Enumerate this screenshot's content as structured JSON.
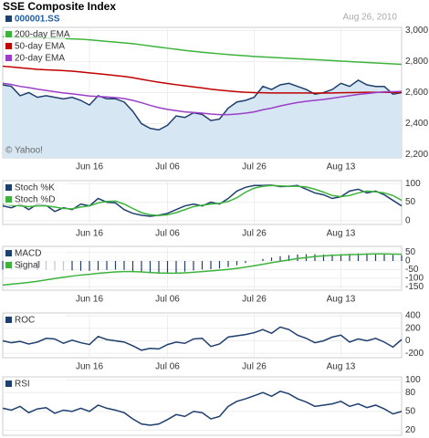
{
  "title": "SSE Composite Index",
  "date": "Aug 26, 2010",
  "attribution": "© Yahoo!",
  "chart_data": [
    {
      "type": "line",
      "categories": [
        null,
        null,
        null,
        null,
        null,
        null,
        null,
        null,
        null,
        null,
        "Jun 16",
        null,
        null,
        null,
        null,
        null,
        null,
        null,
        null,
        "Jul 06",
        null,
        null,
        null,
        null,
        null,
        null,
        null,
        null,
        null,
        "Jul 26",
        null,
        null,
        null,
        null,
        null,
        null,
        null,
        null,
        null,
        "Aug 13",
        null,
        null,
        null,
        null,
        null,
        null,
        null
      ],
      "ylim": [
        2180,
        3020
      ],
      "yticks": [
        {
          "value": 3000,
          "label": "3,000"
        },
        {
          "value": 2800,
          "label": "2,800"
        },
        {
          "value": 2600,
          "label": "2,600"
        },
        {
          "value": 2400,
          "label": "2,400"
        },
        {
          "value": 2200,
          "label": "2,200"
        }
      ],
      "grid": true,
      "series": [
        {
          "name": "000001.SS",
          "color": "#1f3f6e",
          "area": true,
          "values": [
            2650,
            2640,
            2580,
            2600,
            2570,
            2580,
            2570,
            2560,
            2570,
            2550,
            2520,
            2580,
            2560,
            2560,
            2540,
            2480,
            2400,
            2370,
            2360,
            2390,
            2450,
            2440,
            2470,
            2460,
            2420,
            2430,
            2500,
            2540,
            2550,
            2570,
            2640,
            2620,
            2650,
            2660,
            2640,
            2620,
            2590,
            2600,
            2620,
            2660,
            2640,
            2680,
            2650,
            2640,
            2640,
            2590,
            2600
          ]
        },
        {
          "name": "200-day EMA",
          "color": "#3cb43c",
          "values": [
            2960,
            2958,
            2957,
            2955,
            2953,
            2952,
            2950,
            2948,
            2946,
            2944,
            2940,
            2935,
            2930,
            2925,
            2920,
            2915,
            2908,
            2900,
            2893,
            2886,
            2879,
            2872,
            2866,
            2860,
            2855,
            2850,
            2845,
            2841,
            2837,
            2833,
            2830,
            2827,
            2824,
            2821,
            2818,
            2815,
            2812,
            2809,
            2806,
            2803,
            2800,
            2797,
            2794,
            2791,
            2788,
            2785,
            2782
          ]
        },
        {
          "name": "50-day EMA",
          "color": "#c00000",
          "values": [
            2770,
            2765,
            2760,
            2755,
            2750,
            2747,
            2745,
            2742,
            2738,
            2733,
            2727,
            2722,
            2716,
            2710,
            2704,
            2696,
            2686,
            2676,
            2667,
            2659,
            2651,
            2644,
            2637,
            2630,
            2622,
            2616,
            2611,
            2606,
            2602,
            2600,
            2599,
            2598,
            2598,
            2598,
            2598,
            2598,
            2597,
            2597,
            2598,
            2599,
            2600,
            2601,
            2602,
            2602,
            2602,
            2601,
            2600
          ]
        },
        {
          "name": "20-day EMA",
          "color": "#9b3fc8",
          "values": [
            2660,
            2652,
            2640,
            2632,
            2622,
            2614,
            2606,
            2598,
            2592,
            2585,
            2578,
            2575,
            2572,
            2568,
            2562,
            2550,
            2535,
            2518,
            2503,
            2492,
            2484,
            2476,
            2472,
            2468,
            2462,
            2458,
            2458,
            2462,
            2468,
            2476,
            2490,
            2500,
            2514,
            2526,
            2536,
            2544,
            2550,
            2556,
            2564,
            2572,
            2580,
            2588,
            2594,
            2600,
            2605,
            2606,
            2608
          ]
        }
      ]
    },
    {
      "type": "line",
      "categories": [
        null,
        null,
        null,
        null,
        null,
        null,
        null,
        null,
        null,
        null,
        "Jun 16",
        null,
        null,
        null,
        null,
        null,
        null,
        null,
        null,
        "Jul 06",
        null,
        null,
        null,
        null,
        null,
        null,
        null,
        null,
        null,
        "Jul 26",
        null,
        null,
        null,
        null,
        null,
        null,
        null,
        null,
        null,
        "Aug 13",
        null,
        null,
        null,
        null,
        null,
        null,
        null
      ],
      "ylim": [
        -10,
        108
      ],
      "yticks": [
        100,
        50,
        0
      ],
      "grid": true,
      "series": [
        {
          "name": "Stoch %K",
          "color": "#1f3f6e",
          "values": [
            40,
            35,
            45,
            30,
            45,
            42,
            25,
            35,
            30,
            45,
            40,
            60,
            50,
            48,
            30,
            20,
            15,
            12,
            15,
            20,
            30,
            40,
            45,
            40,
            50,
            45,
            60,
            80,
            90,
            95,
            95,
            96,
            92,
            93,
            95,
            85,
            75,
            70,
            60,
            65,
            80,
            85,
            75,
            80,
            70,
            55,
            40
          ]
        },
        {
          "name": "Stoch %D",
          "color": "#3cb43c",
          "values": [
            45,
            42,
            40,
            38,
            40,
            40,
            37,
            33,
            32,
            37,
            40,
            48,
            52,
            53,
            45,
            33,
            22,
            16,
            14,
            16,
            22,
            30,
            38,
            42,
            45,
            47,
            52,
            62,
            77,
            88,
            93,
            95,
            94,
            93,
            93,
            91,
            85,
            77,
            68,
            65,
            68,
            75,
            80,
            78,
            75,
            68,
            55
          ]
        }
      ]
    },
    {
      "type": "line",
      "categories": [
        null,
        null,
        null,
        null,
        null,
        null,
        null,
        null,
        null,
        null,
        "Jun 16",
        null,
        null,
        null,
        null,
        null,
        null,
        null,
        null,
        "Jul 06",
        null,
        null,
        null,
        null,
        null,
        null,
        null,
        null,
        null,
        "Jul 26",
        null,
        null,
        null,
        null,
        null,
        null,
        null,
        null,
        null,
        "Aug 13",
        null,
        null,
        null,
        null,
        null,
        null,
        null
      ],
      "ylim": [
        -170,
        85
      ],
      "yticks": [
        50,
        0,
        -50,
        -100,
        -150
      ],
      "grid": true,
      "series": [
        {
          "name": "MACD",
          "color": "#1f3f6e",
          "type": "bar",
          "values": [
            -50,
            -48,
            -52,
            -50,
            -52,
            -53,
            -55,
            -56,
            -55,
            -57,
            -58,
            -54,
            -52,
            -50,
            -52,
            -58,
            -66,
            -72,
            -75,
            -73,
            -68,
            -62,
            -55,
            -50,
            -48,
            -44,
            -35,
            -25,
            -12,
            0,
            12,
            20,
            28,
            34,
            38,
            40,
            40,
            38,
            38,
            40,
            42,
            44,
            44,
            42,
            40,
            36,
            33
          ]
        },
        {
          "name": "Signal",
          "color": "#3cb43c",
          "values": [
            -140,
            -135,
            -130,
            -125,
            -118,
            -110,
            -102,
            -95,
            -88,
            -82,
            -78,
            -72,
            -68,
            -64,
            -62,
            -62,
            -64,
            -67,
            -70,
            -71,
            -71,
            -69,
            -66,
            -62,
            -58,
            -54,
            -49,
            -43,
            -36,
            -28,
            -19,
            -10,
            -2,
            6,
            14,
            20,
            26,
            30,
            33,
            35,
            37,
            38,
            40,
            41,
            41,
            40,
            39
          ]
        }
      ]
    },
    {
      "type": "line",
      "categories": [
        null,
        null,
        null,
        null,
        null,
        null,
        null,
        null,
        null,
        null,
        "Jun 16",
        null,
        null,
        null,
        null,
        null,
        null,
        null,
        null,
        "Jul 06",
        null,
        null,
        null,
        null,
        null,
        null,
        null,
        null,
        null,
        "Jul 26",
        null,
        null,
        null,
        null,
        null,
        null,
        null,
        null,
        null,
        "Aug 13",
        null,
        null,
        null,
        null,
        null,
        null,
        null
      ],
      "ylim": [
        -270,
        445
      ],
      "yticks": [
        400,
        200,
        0,
        -200
      ],
      "grid": true,
      "series": [
        {
          "name": "ROC",
          "color": "#1f3f6e",
          "values": [
            0,
            -30,
            -10,
            -50,
            -20,
            40,
            30,
            -40,
            10,
            -30,
            -60,
            70,
            20,
            0,
            -20,
            -80,
            -150,
            -120,
            -130,
            -60,
            -20,
            -40,
            30,
            40,
            -90,
            -50,
            60,
            80,
            100,
            130,
            180,
            120,
            220,
            180,
            90,
            40,
            -30,
            0,
            60,
            90,
            -20,
            30,
            0,
            40,
            -20,
            -100,
            20
          ]
        }
      ]
    },
    {
      "type": "line",
      "ylim": [
        12,
        105
      ],
      "yticks": [
        100,
        80,
        50,
        20
      ],
      "grid": true,
      "series": [
        {
          "name": "RSI",
          "color": "#1f3f6e",
          "values": [
            55,
            52,
            58,
            48,
            54,
            56,
            47,
            52,
            50,
            55,
            50,
            60,
            55,
            52,
            48,
            38,
            30,
            28,
            30,
            37,
            45,
            42,
            50,
            48,
            38,
            42,
            58,
            66,
            70,
            75,
            80,
            74,
            82,
            78,
            70,
            65,
            58,
            60,
            62,
            66,
            58,
            62,
            56,
            60,
            54,
            46,
            50
          ]
        }
      ]
    }
  ]
}
